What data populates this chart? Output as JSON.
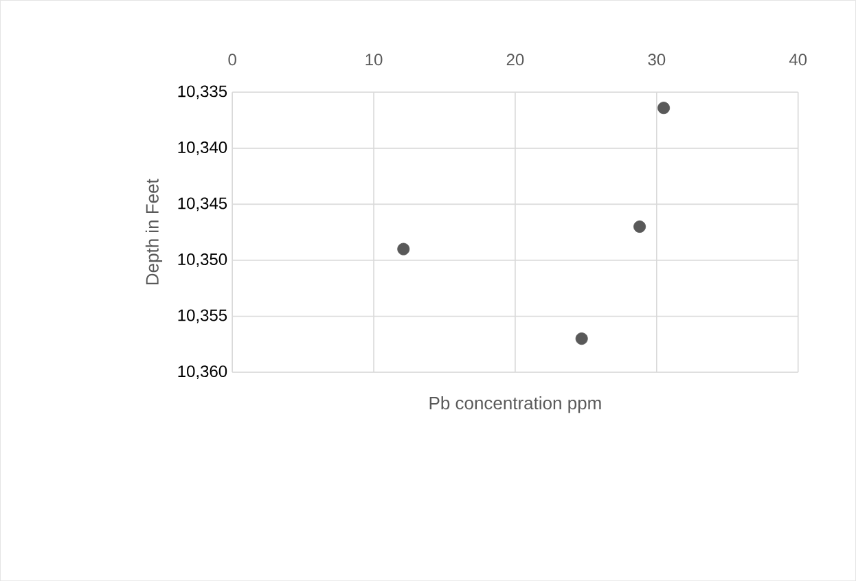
{
  "chart_data": {
    "type": "scatter",
    "xlabel": "Pb concentration ppm",
    "ylabel": "Depth in Feet",
    "x": [
      30.5,
      28.8,
      12.1,
      24.7
    ],
    "series": [
      {
        "color": "#595959",
        "values": [
          10336.4,
          10347,
          10349,
          10357
        ]
      }
    ],
    "xlim": [
      0,
      40
    ],
    "xticks": [
      0,
      10,
      20,
      30,
      40
    ],
    "ylim": [
      10360,
      10335
    ],
    "yticks": [
      {
        "value": 10335,
        "label": "10,335"
      },
      {
        "value": 10340,
        "label": "10,340"
      },
      {
        "value": 10345,
        "label": "10,345"
      },
      {
        "value": 10350,
        "label": "10,350"
      },
      {
        "value": 10355,
        "label": "10,355"
      },
      {
        "value": 10360,
        "label": "10,360"
      }
    ],
    "grid": true
  }
}
